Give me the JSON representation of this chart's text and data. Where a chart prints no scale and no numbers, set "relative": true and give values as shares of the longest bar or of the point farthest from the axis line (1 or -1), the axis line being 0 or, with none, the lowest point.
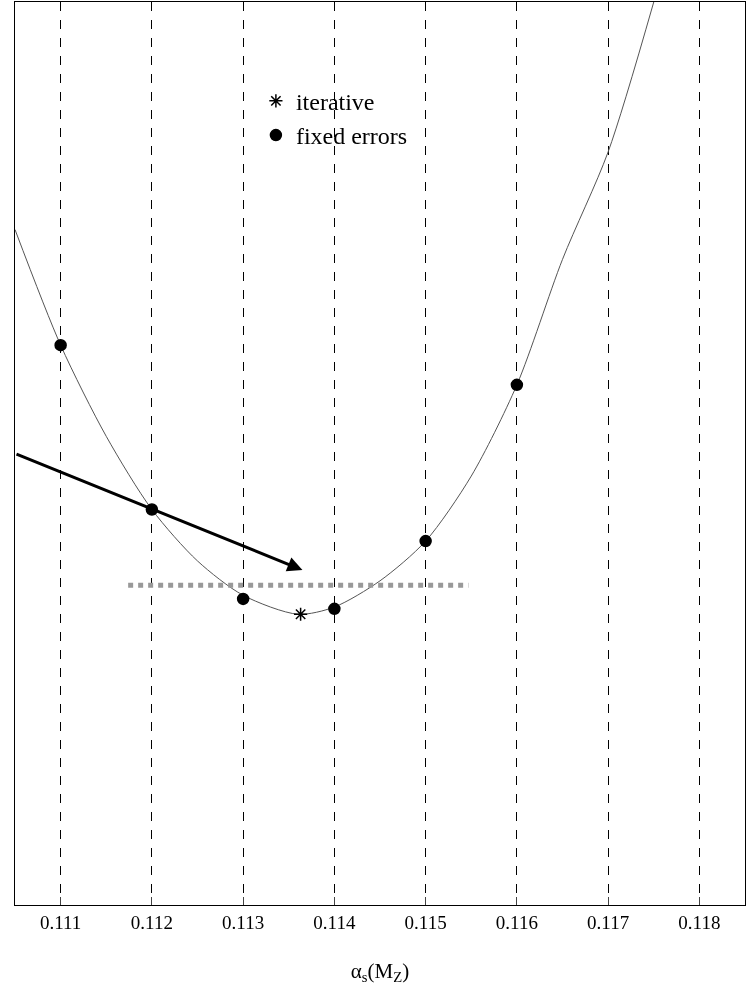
{
  "chart_data": {
    "type": "line",
    "relative": true,
    "xlabel": "α$_{s}$(M$_{Z}$)",
    "xlim": [
      0.1105,
      0.1185
    ],
    "xticks": [
      0.111,
      0.112,
      0.113,
      0.114,
      0.115,
      0.116,
      0.117,
      0.118
    ],
    "grid": "x",
    "legend": "top",
    "series": [
      {
        "color": "#555555",
        "line_style": "solid",
        "marker": "none",
        "x": [
          0.1105,
          0.111,
          0.1115,
          0.112,
          0.1125,
          0.113,
          0.1136,
          0.114,
          0.1145,
          0.115,
          0.1155,
          0.116,
          0.1165,
          0.117,
          0.1175
        ],
        "values": [
          0.748,
          0.62,
          0.519,
          0.438,
          0.381,
          0.343,
          0.322,
          0.33,
          0.359,
          0.403,
          0.475,
          0.576,
          0.715,
          0.834,
          1.0
        ]
      },
      {
        "color": "#999999",
        "line_style": "dotted",
        "marker": "none",
        "x": [
          0.11174,
          0.11547
        ],
        "values": [
          0.354,
          0.354
        ]
      },
      {
        "type": "scatter",
        "name": "iterative",
        "color": "#000000",
        "marker": "cross",
        "x": [
          0.11363
        ],
        "values": [
          0.322
        ]
      },
      {
        "type": "scatter",
        "name": "fixed errors",
        "color": "#000000",
        "marker": "circle",
        "x": [
          0.111,
          0.112,
          0.113,
          0.114,
          0.115,
          0.116
        ],
        "values": [
          0.62,
          0.438,
          0.339,
          0.328,
          0.403,
          0.576
        ]
      }
    ]
  }
}
